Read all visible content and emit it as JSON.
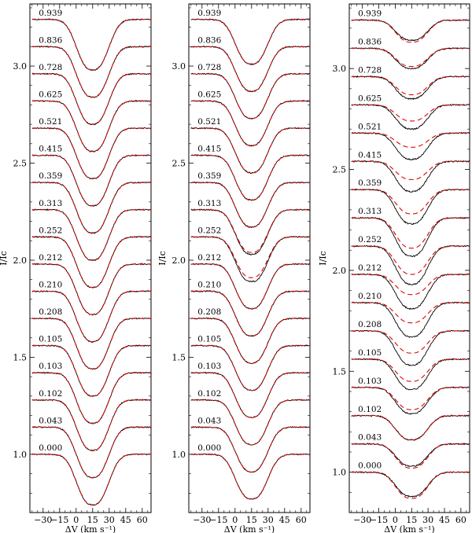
{
  "chart_data": [
    {
      "type": "line",
      "panel": "left",
      "ylabel": "I/Ic",
      "xlabel": "ΔV (km s⁻¹)",
      "xlim": [
        -42,
        68
      ],
      "ylim": [
        0.7,
        3.32
      ],
      "xticks": [
        -30,
        -15,
        0,
        15,
        30,
        45,
        60
      ],
      "yticks": [
        1.0,
        1.5,
        2.0,
        2.5,
        3.0
      ],
      "line_center": 15,
      "phases": [
        "0.000",
        "0.043",
        "0.102",
        "0.103",
        "0.105",
        "0.208",
        "0.210",
        "0.212",
        "0.252",
        "0.313",
        "0.359",
        "0.415",
        "0.521",
        "0.625",
        "0.728",
        "0.836",
        "0.939"
      ],
      "continuum_levels": [
        1.0,
        1.14,
        1.28,
        1.42,
        1.56,
        1.7,
        1.84,
        1.98,
        2.12,
        2.26,
        2.4,
        2.54,
        2.68,
        2.82,
        2.96,
        3.1,
        3.24
      ],
      "line_depth": 0.26,
      "model_depth_offsets": [
        0,
        0,
        0,
        0,
        0,
        0,
        0,
        0,
        0,
        0,
        0,
        0,
        0,
        0,
        0,
        0,
        0
      ],
      "series": [
        {
          "name": "",
          "color": "#000000",
          "style": "solid"
        },
        {
          "name": "",
          "color": "#e00000",
          "style": "dashed"
        }
      ]
    },
    {
      "type": "line",
      "panel": "middle",
      "ylabel": "I/Ic",
      "xlabel": "ΔV (km s⁻¹)",
      "xlim": [
        -42,
        68
      ],
      "ylim": [
        0.7,
        3.32
      ],
      "xticks": [
        -30,
        -15,
        0,
        15,
        30,
        45,
        60
      ],
      "yticks": [
        1.0,
        1.5,
        2.0,
        2.5,
        3.0
      ],
      "line_center": 15,
      "phases": [
        "0.000",
        "0.043",
        "0.102",
        "0.103",
        "0.105",
        "0.208",
        "0.210",
        "0.212",
        "0.252",
        "0.313",
        "0.359",
        "0.415",
        "0.521",
        "0.625",
        "0.728",
        "0.836",
        "0.939"
      ],
      "continuum_levels": [
        1.0,
        1.14,
        1.28,
        1.42,
        1.56,
        1.7,
        1.84,
        1.98,
        2.12,
        2.26,
        2.4,
        2.54,
        2.68,
        2.82,
        2.96,
        3.1,
        3.24
      ],
      "line_depth": 0.23,
      "model_depth_offsets": [
        0,
        0,
        0,
        0,
        0,
        0,
        0,
        0,
        -0.02,
        -0.01,
        0,
        0,
        0,
        0,
        0,
        0,
        0
      ],
      "series": [
        {
          "name": "",
          "color": "#000000",
          "style": "solid"
        },
        {
          "name": "",
          "color": "#e00000",
          "style": "dashed"
        }
      ]
    },
    {
      "type": "line",
      "panel": "right",
      "ylabel": "I/Ic",
      "xlabel": "ΔV (km s⁻¹)",
      "xlim": [
        -42,
        68
      ],
      "ylim": [
        0.8,
        3.32
      ],
      "xticks": [
        -30,
        -15,
        0,
        15,
        30,
        45,
        60
      ],
      "yticks": [
        1.0,
        1.5,
        2.0,
        2.5,
        3.0
      ],
      "line_center": 15,
      "phases": [
        "0.000",
        "0.043",
        "0.102",
        "0.103",
        "0.105",
        "0.208",
        "0.210",
        "0.212",
        "0.252",
        "0.313",
        "0.359",
        "0.415",
        "0.521",
        "0.625",
        "0.728",
        "0.836",
        "0.939"
      ],
      "continuum_levels": [
        1.0,
        1.14,
        1.28,
        1.42,
        1.56,
        1.7,
        1.84,
        1.98,
        2.12,
        2.26,
        2.4,
        2.54,
        2.68,
        2.82,
        2.96,
        3.1,
        3.24
      ],
      "line_depths": [
        0.12,
        0.11,
        0.12,
        0.13,
        0.15,
        0.17,
        0.17,
        0.17,
        0.19,
        0.19,
        0.17,
        0.15,
        0.13,
        0.12,
        0.11,
        0.1,
        0.1
      ],
      "model_depth_offsets": [
        0.01,
        0.01,
        0.0,
        -0.02,
        -0.04,
        -0.06,
        -0.07,
        -0.07,
        -0.05,
        -0.04,
        -0.05,
        -0.06,
        -0.06,
        -0.04,
        -0.02,
        -0.01,
        0.01
      ],
      "series": [
        {
          "name": "",
          "color": "#000000",
          "style": "solid"
        },
        {
          "name": "",
          "color": "#e00000",
          "style": "dashed"
        }
      ]
    }
  ],
  "colors": {
    "observed": "#000000",
    "model": "#e00000"
  }
}
